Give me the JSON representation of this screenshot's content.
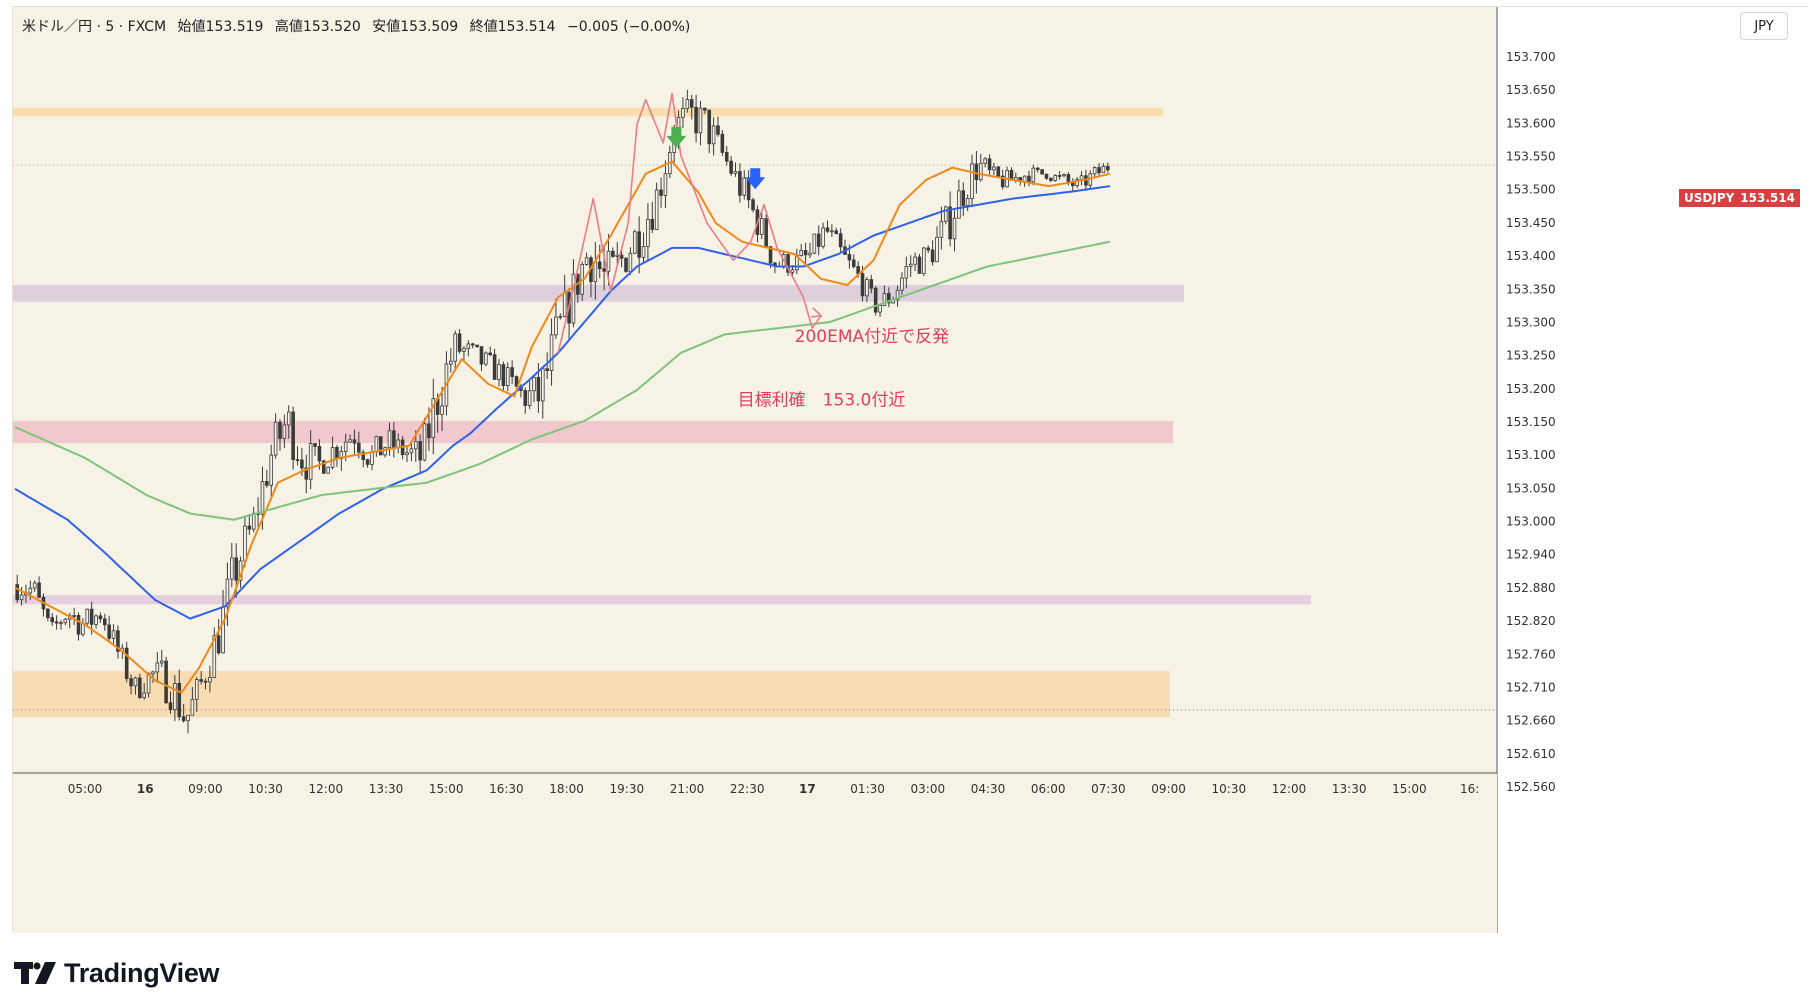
{
  "legend": {
    "symbol": "米ドル／円 · 5 · FXCM",
    "open": "始値153.519",
    "high": "高値153.520",
    "low": "安値153.509",
    "close": "終値153.514",
    "change": "−0.005 (−0.00%)"
  },
  "currency_button": "JPY",
  "price_tag": {
    "symbol": "USDJPY",
    "price": "153.514"
  },
  "branding": {
    "logo_text": "TradingView"
  },
  "colors": {
    "background": "#f6f2e6",
    "ema_fast": "#ef8a1a",
    "ema_mid": "#2f62e8",
    "ema_200": "#7ec47a",
    "candle": "#3a3a3a",
    "annotation": "#e0405a",
    "zigzag": "#ec7c86",
    "price_tag": "#d83f3f",
    "arrow_green": "#4caf50",
    "arrow_blue": "#2962ff"
  },
  "chart_data": {
    "type": "candlestick",
    "y_axis": {
      "ylim": [
        152.53,
        153.77
      ],
      "tick_labels": [
        "153.700",
        "153.650",
        "153.600",
        "153.550",
        "153.500",
        "153.450",
        "153.400",
        "153.350",
        "153.300",
        "153.250",
        "153.200",
        "153.150",
        "153.100",
        "153.050",
        "153.000",
        "152.940",
        "152.880",
        "152.820",
        "152.760",
        "152.710",
        "152.660",
        "152.610",
        "152.560"
      ]
    },
    "x_axis": {
      "tick_labels": [
        "05:00",
        "16",
        "09:00",
        "10:30",
        "12:00",
        "13:30",
        "15:00",
        "16:30",
        "18:00",
        "19:30",
        "21:00",
        "22:30",
        "17",
        "01:30",
        "03:00",
        "04:30",
        "06:00",
        "07:30",
        "09:00",
        "10:30",
        "12:00",
        "13:30",
        "15:00",
        "16:"
      ],
      "bold_labels": [
        "16",
        "17"
      ]
    },
    "last_price": 153.514,
    "zones": [
      {
        "y1": 153.593,
        "y2": 153.607,
        "color": "#f9deb0"
      },
      {
        "y1": 153.293,
        "y2": 153.32,
        "color": "#ddd0dc"
      },
      {
        "y1": 153.064,
        "y2": 153.1,
        "color": "#f2c8cf"
      },
      {
        "y1": 152.803,
        "y2": 152.818,
        "color": "#e6d0e0"
      },
      {
        "y1": 152.62,
        "y2": 152.695,
        "color": "#f8ddb4"
      }
    ],
    "key_levels": [
      {
        "value": 153.597,
        "label": "153.600"
      },
      {
        "value": 153.305,
        "label": "153.300"
      },
      {
        "value": 153.083,
        "label": "153.100"
      },
      {
        "value": 152.811,
        "label": "152.820"
      },
      {
        "value": 152.637,
        "label": "152.660"
      }
    ],
    "price_path": [
      [
        152.87,
        152.8
      ],
      [
        152.86,
        152.79
      ],
      [
        152.78,
        152.74
      ],
      [
        152.82,
        152.76
      ],
      [
        152.81,
        152.73
      ],
      [
        152.82,
        152.76
      ],
      [
        152.76,
        152.69
      ],
      [
        152.7,
        152.63
      ],
      [
        152.72,
        152.66
      ],
      [
        152.74,
        152.62
      ],
      [
        152.66,
        152.57
      ],
      [
        152.72,
        152.64
      ],
      [
        152.82,
        152.7
      ],
      [
        152.93,
        152.8
      ],
      [
        152.98,
        152.88
      ],
      [
        153.1,
        152.98
      ],
      [
        153.16,
        153.04
      ],
      [
        153.1,
        152.98
      ],
      [
        153.06,
        153.0
      ],
      [
        153.1,
        153.02
      ],
      [
        153.12,
        153.04
      ],
      [
        153.08,
        153.0
      ],
      [
        153.1,
        153.03
      ],
      [
        153.08,
        153.02
      ],
      [
        153.09,
        152.99
      ],
      [
        153.22,
        153.07
      ],
      [
        153.26,
        153.18
      ],
      [
        153.24,
        153.17
      ],
      [
        153.22,
        153.16
      ],
      [
        153.2,
        153.14
      ],
      [
        153.18,
        153.1
      ],
      [
        153.2,
        153.08
      ],
      [
        153.3,
        153.16
      ],
      [
        153.36,
        153.26
      ],
      [
        153.46,
        153.3
      ],
      [
        153.4,
        153.24
      ],
      [
        153.42,
        153.31
      ],
      [
        153.47,
        153.35
      ],
      [
        153.52,
        153.41
      ],
      [
        153.62,
        153.53
      ],
      [
        153.64,
        153.55
      ],
      [
        153.63,
        153.52
      ],
      [
        153.55,
        153.5
      ],
      [
        153.52,
        153.43
      ],
      [
        153.46,
        153.38
      ],
      [
        153.39,
        153.32
      ],
      [
        153.38,
        153.33
      ],
      [
        153.4,
        153.33
      ],
      [
        153.44,
        153.38
      ],
      [
        153.4,
        153.33
      ],
      [
        153.36,
        153.3
      ],
      [
        153.31,
        153.26
      ],
      [
        153.34,
        153.27
      ],
      [
        153.39,
        153.32
      ],
      [
        153.4,
        153.33
      ],
      [
        153.46,
        153.35
      ],
      [
        153.51,
        153.42
      ],
      [
        153.56,
        153.47
      ],
      [
        153.52,
        153.46
      ],
      [
        153.51,
        153.47
      ],
      [
        153.52,
        153.48
      ],
      [
        153.51,
        153.49
      ],
      [
        153.51,
        153.47
      ],
      [
        153.5,
        153.46
      ],
      [
        153.52,
        153.48
      ],
      [
        153.53,
        153.5
      ]
    ],
    "series": [
      {
        "type": "line",
        "color": "#2f62e8",
        "values": [
          [
            0,
            152.99
          ],
          [
            12,
            152.94
          ],
          [
            20,
            152.89
          ],
          [
            26,
            152.85
          ],
          [
            32,
            152.81
          ],
          [
            40,
            152.78
          ],
          [
            48,
            152.8
          ],
          [
            56,
            152.86
          ],
          [
            64,
            152.9
          ],
          [
            74,
            152.95
          ],
          [
            84,
            152.99
          ],
          [
            94,
            153.02
          ],
          [
            100,
            153.06
          ],
          [
            104,
            153.08
          ],
          [
            110,
            153.12
          ],
          [
            118,
            153.17
          ],
          [
            124,
            153.21
          ],
          [
            130,
            153.26
          ],
          [
            136,
            153.31
          ],
          [
            142,
            153.35
          ],
          [
            150,
            153.38
          ],
          [
            156,
            153.38
          ],
          [
            162,
            153.37
          ],
          [
            168,
            153.36
          ],
          [
            174,
            153.35
          ],
          [
            180,
            153.35
          ],
          [
            188,
            153.37
          ],
          [
            196,
            153.4
          ],
          [
            204,
            153.42
          ],
          [
            212,
            153.44
          ],
          [
            220,
            153.45
          ],
          [
            228,
            153.46
          ],
          [
            240,
            153.47
          ],
          [
            250,
            153.48
          ]
        ]
      },
      {
        "type": "line",
        "color": "#ef8a1a",
        "values": [
          [
            0,
            152.83
          ],
          [
            8,
            152.8
          ],
          [
            16,
            152.77
          ],
          [
            24,
            152.73
          ],
          [
            32,
            152.68
          ],
          [
            38,
            152.66
          ],
          [
            42,
            152.7
          ],
          [
            48,
            152.78
          ],
          [
            54,
            152.9
          ],
          [
            60,
            153.0
          ],
          [
            66,
            153.02
          ],
          [
            74,
            153.04
          ],
          [
            82,
            153.05
          ],
          [
            90,
            153.06
          ],
          [
            96,
            153.13
          ],
          [
            102,
            153.2
          ],
          [
            108,
            153.16
          ],
          [
            114,
            153.14
          ],
          [
            118,
            153.22
          ],
          [
            124,
            153.3
          ],
          [
            130,
            153.33
          ],
          [
            136,
            153.4
          ],
          [
            144,
            153.5
          ],
          [
            150,
            153.52
          ],
          [
            156,
            153.47
          ],
          [
            160,
            153.42
          ],
          [
            166,
            153.39
          ],
          [
            172,
            153.38
          ],
          [
            178,
            153.37
          ],
          [
            184,
            153.33
          ],
          [
            190,
            153.32
          ],
          [
            196,
            153.36
          ],
          [
            202,
            153.45
          ],
          [
            208,
            153.49
          ],
          [
            214,
            153.51
          ],
          [
            220,
            153.5
          ],
          [
            228,
            153.49
          ],
          [
            236,
            153.48
          ],
          [
            244,
            153.49
          ],
          [
            250,
            153.5
          ]
        ]
      },
      {
        "type": "line",
        "color": "#7ec47a",
        "values": [
          [
            0,
            153.09
          ],
          [
            16,
            153.04
          ],
          [
            30,
            152.98
          ],
          [
            40,
            152.95
          ],
          [
            50,
            152.94
          ],
          [
            60,
            152.96
          ],
          [
            70,
            152.98
          ],
          [
            82,
            152.99
          ],
          [
            94,
            153.0
          ],
          [
            106,
            153.03
          ],
          [
            118,
            153.07
          ],
          [
            130,
            153.1
          ],
          [
            142,
            153.15
          ],
          [
            152,
            153.21
          ],
          [
            162,
            153.24
          ],
          [
            174,
            153.25
          ],
          [
            186,
            153.26
          ],
          [
            198,
            153.29
          ],
          [
            210,
            153.32
          ],
          [
            222,
            153.35
          ],
          [
            236,
            153.37
          ],
          [
            250,
            153.39
          ]
        ]
      }
    ],
    "zigzag": [
      [
        124,
        153.21
      ],
      [
        128,
        153.33
      ],
      [
        132,
        153.46
      ],
      [
        136,
        153.31
      ],
      [
        140,
        153.42
      ],
      [
        142,
        153.58
      ],
      [
        144,
        153.62
      ],
      [
        148,
        153.55
      ],
      [
        150,
        153.63
      ],
      [
        152,
        153.53
      ],
      [
        158,
        153.42
      ],
      [
        164,
        153.36
      ],
      [
        168,
        153.39
      ],
      [
        171,
        153.45
      ],
      [
        174,
        153.38
      ],
      [
        180,
        153.3
      ],
      [
        182,
        153.25
      ],
      [
        184,
        153.27
      ]
    ],
    "arrows": [
      {
        "x": 151,
        "y": 153.555,
        "color": "#4caf50"
      },
      {
        "x": 169,
        "y": 153.488,
        "color": "#2962ff"
      }
    ],
    "annotations": [
      {
        "text": "200EMA付近で反発",
        "x": 178,
        "y": 153.228
      },
      {
        "text": "目標利確　153.0付近",
        "x": 165,
        "y": 153.125
      }
    ]
  }
}
